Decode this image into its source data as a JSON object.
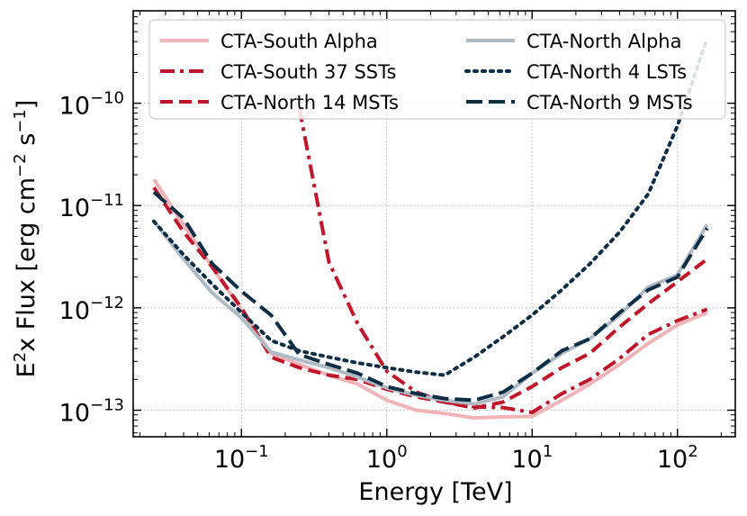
{
  "chart_data": {
    "type": "line",
    "xlabel": "Energy [TeV]",
    "ylabel_parts": {
      "base": "E",
      "sup1": "2",
      "mid": "x Flux [erg cm",
      "sup2": "−2",
      "mid2": " s",
      "sup3": "−1",
      "end": "]"
    },
    "xscale": "log",
    "yscale": "log",
    "xlim": [
      0.018,
      250
    ],
    "ylim": [
      5.5e-14,
      8e-10
    ],
    "grid": true,
    "legend_position": "upper center",
    "x_ticks": [
      {
        "value": 0.1,
        "base": "10",
        "exp": "−1"
      },
      {
        "value": 1,
        "base": "10",
        "exp": "0"
      },
      {
        "value": 10,
        "base": "10",
        "exp": "1"
      },
      {
        "value": 100,
        "base": "10",
        "exp": "2"
      }
    ],
    "y_ticks": [
      {
        "value": 1e-13,
        "base": "10",
        "exp": "−13"
      },
      {
        "value": 1e-12,
        "base": "10",
        "exp": "−12"
      },
      {
        "value": 1e-11,
        "base": "10",
        "exp": "−11"
      },
      {
        "value": 1e-10,
        "base": "10",
        "exp": "−10"
      }
    ],
    "series": [
      {
        "name": "CTA-South Alpha",
        "color": "#f0b3b8",
        "style": "solid",
        "x": [
          0.025,
          0.04,
          0.063,
          0.1,
          0.16,
          0.25,
          0.4,
          0.63,
          1.0,
          1.6,
          2.5,
          4.0,
          6.3,
          10,
          16,
          25,
          40,
          63,
          100,
          160
        ],
        "y": [
          1.8e-11,
          6.5e-12,
          2.5e-12,
          9.5e-13,
          3.6e-13,
          2.8e-13,
          2.2e-13,
          1.8e-13,
          1.25e-13,
          1e-13,
          9.3e-14,
          8.4e-14,
          8.6e-14,
          8.7e-14,
          1.25e-13,
          1.8e-13,
          2.8e-13,
          4.5e-13,
          6.8e-13,
          9e-13
        ]
      },
      {
        "name": "CTA-South 37 SSTs",
        "color": "#c0162a",
        "style": "dashdot",
        "x": [
          0.25,
          0.4,
          0.63,
          1.0,
          1.6,
          2.5,
          4.0,
          6.3,
          10,
          16,
          25,
          40,
          63,
          100,
          160
        ],
        "y": [
          9e-11,
          2.8e-12,
          7e-13,
          2.4e-13,
          1.5e-13,
          1.2e-13,
          1.08e-13,
          1.06e-13,
          9.5e-14,
          1.45e-13,
          2e-13,
          3.2e-13,
          5.5e-13,
          7.5e-13,
          9.7e-13
        ]
      },
      {
        "name": "CTA-North 14 MSTs",
        "color": "#c0162a",
        "style": "dashed",
        "x": [
          0.025,
          0.04,
          0.063,
          0.1,
          0.16,
          0.25,
          0.4,
          0.63,
          1.0,
          1.6,
          2.5,
          4.0,
          6.3,
          10,
          16,
          25,
          40,
          63,
          100,
          160
        ],
        "y": [
          1.5e-11,
          5.5e-12,
          2.5e-12,
          1e-12,
          3.3e-13,
          2.6e-13,
          2.2e-13,
          2e-13,
          1.6e-13,
          1.35e-13,
          1.2e-13,
          1.05e-13,
          1.2e-13,
          1.7e-13,
          2.6e-13,
          3.6e-13,
          6.5e-13,
          1.1e-12,
          1.8e-12,
          3e-12
        ]
      },
      {
        "name": "CTA-North Alpha",
        "color": "#aebbc4",
        "style": "solid",
        "x": [
          0.025,
          0.04,
          0.063,
          0.1,
          0.16,
          0.25,
          0.4,
          0.63,
          1.0,
          1.6,
          2.5,
          4.0,
          6.3,
          10,
          16,
          25,
          40,
          63,
          100,
          160
        ],
        "y": [
          7e-12,
          3e-12,
          1.4e-12,
          8e-13,
          3.7e-13,
          3.1e-13,
          2.6e-13,
          2.1e-13,
          1.65e-13,
          1.4e-13,
          1.25e-13,
          1.15e-13,
          1.35e-13,
          2.3e-13,
          3.6e-13,
          5e-13,
          8.5e-13,
          1.6e-12,
          2.1e-12,
          6.5e-12
        ]
      },
      {
        "name": "CTA-North 4 LSTs",
        "color": "#0d2e45",
        "style": "dotted",
        "x": [
          0.025,
          0.04,
          0.063,
          0.1,
          0.16,
          0.25,
          0.4,
          0.63,
          1.0,
          1.6,
          2.5,
          4.0,
          6.3,
          10,
          16,
          25,
          40,
          63,
          100,
          160
        ],
        "y": [
          7e-12,
          3.3e-12,
          1.7e-12,
          9e-13,
          4.8e-13,
          3.8e-13,
          3.3e-13,
          2.9e-13,
          2.6e-13,
          2.35e-13,
          2.2e-13,
          3.3e-13,
          5.2e-13,
          8.5e-13,
          1.5e-12,
          2.7e-12,
          5.5e-12,
          1.3e-11,
          6e-11,
          4.3e-10
        ]
      },
      {
        "name": "CTA-North 9 MSTs",
        "color": "#0d2e45",
        "style": "longdash",
        "x": [
          0.025,
          0.04,
          0.063,
          0.1,
          0.16,
          0.25,
          0.4,
          0.63,
          1.0,
          1.6,
          2.5,
          4.0,
          6.3,
          10,
          16,
          25,
          40,
          63,
          100,
          160
        ],
        "y": [
          1.35e-11,
          7.5e-12,
          2.7e-12,
          1.45e-12,
          8.5e-13,
          3.5e-13,
          2.8e-13,
          2.3e-13,
          1.7e-13,
          1.45e-13,
          1.3e-13,
          1.25e-13,
          1.5e-13,
          2.3e-13,
          3.8e-13,
          5e-13,
          9e-13,
          1.5e-12,
          2e-12,
          6e-12
        ]
      }
    ]
  }
}
